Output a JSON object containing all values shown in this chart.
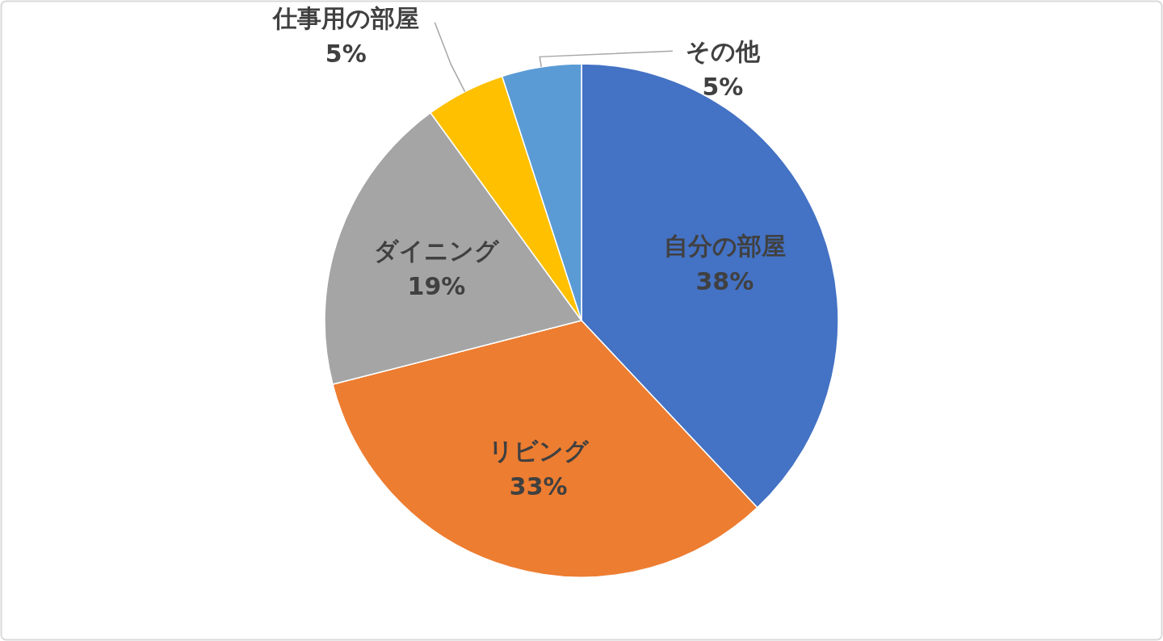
{
  "chart_data": {
    "type": "pie",
    "categories": [
      "自分の部屋",
      "リビング",
      "ダイニング",
      "仕事用の部屋",
      "その他"
    ],
    "values": [
      38,
      33,
      19,
      5,
      5
    ],
    "colors": [
      "#4472c4",
      "#ed7d31",
      "#a5a5a5",
      "#ffc000",
      "#5b9bd5"
    ],
    "value_labels": [
      "38%",
      "33%",
      "19%",
      "5%",
      "5%"
    ]
  }
}
